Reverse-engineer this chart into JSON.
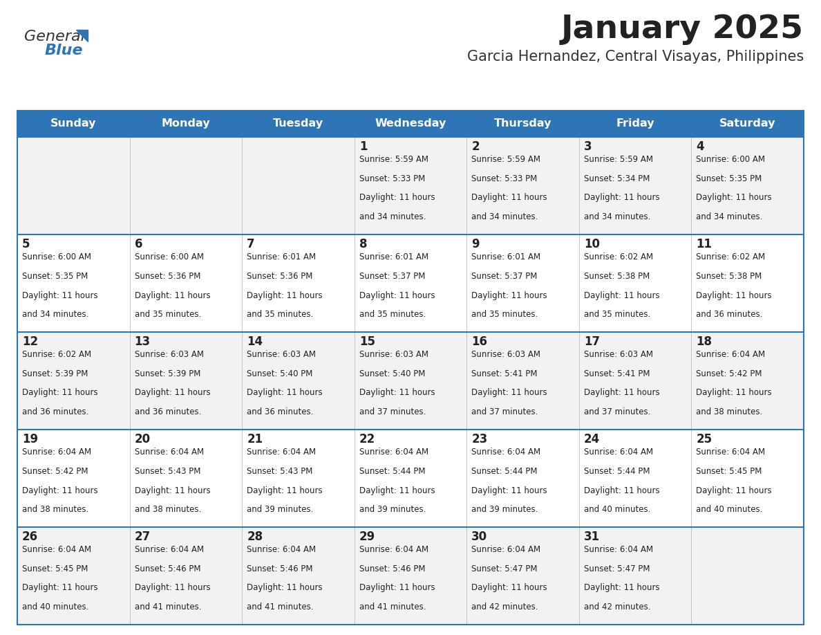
{
  "title": "January 2025",
  "subtitle": "Garcia Hernandez, Central Visayas, Philippines",
  "header_bg": "#2E75B6",
  "header_text_color": "#FFFFFF",
  "row_bg_odd": "#F2F2F2",
  "row_bg_even": "#FFFFFF",
  "day_headers": [
    "Sunday",
    "Monday",
    "Tuesday",
    "Wednesday",
    "Thursday",
    "Friday",
    "Saturday"
  ],
  "cell_line_color": "#2E75B6",
  "day_number_color": "#222222",
  "info_text_color": "#222222",
  "calendar_data": [
    [
      {
        "day": "",
        "sunrise": "",
        "sunset": "",
        "daylight_h": "",
        "daylight_m": ""
      },
      {
        "day": "",
        "sunrise": "",
        "sunset": "",
        "daylight_h": "",
        "daylight_m": ""
      },
      {
        "day": "",
        "sunrise": "",
        "sunset": "",
        "daylight_h": "",
        "daylight_m": ""
      },
      {
        "day": "1",
        "sunrise": "5:59 AM",
        "sunset": "5:33 PM",
        "daylight_h": "11",
        "daylight_m": "34"
      },
      {
        "day": "2",
        "sunrise": "5:59 AM",
        "sunset": "5:33 PM",
        "daylight_h": "11",
        "daylight_m": "34"
      },
      {
        "day": "3",
        "sunrise": "5:59 AM",
        "sunset": "5:34 PM",
        "daylight_h": "11",
        "daylight_m": "34"
      },
      {
        "day": "4",
        "sunrise": "6:00 AM",
        "sunset": "5:35 PM",
        "daylight_h": "11",
        "daylight_m": "34"
      }
    ],
    [
      {
        "day": "5",
        "sunrise": "6:00 AM",
        "sunset": "5:35 PM",
        "daylight_h": "11",
        "daylight_m": "34"
      },
      {
        "day": "6",
        "sunrise": "6:00 AM",
        "sunset": "5:36 PM",
        "daylight_h": "11",
        "daylight_m": "35"
      },
      {
        "day": "7",
        "sunrise": "6:01 AM",
        "sunset": "5:36 PM",
        "daylight_h": "11",
        "daylight_m": "35"
      },
      {
        "day": "8",
        "sunrise": "6:01 AM",
        "sunset": "5:37 PM",
        "daylight_h": "11",
        "daylight_m": "35"
      },
      {
        "day": "9",
        "sunrise": "6:01 AM",
        "sunset": "5:37 PM",
        "daylight_h": "11",
        "daylight_m": "35"
      },
      {
        "day": "10",
        "sunrise": "6:02 AM",
        "sunset": "5:38 PM",
        "daylight_h": "11",
        "daylight_m": "35"
      },
      {
        "day": "11",
        "sunrise": "6:02 AM",
        "sunset": "5:38 PM",
        "daylight_h": "11",
        "daylight_m": "36"
      }
    ],
    [
      {
        "day": "12",
        "sunrise": "6:02 AM",
        "sunset": "5:39 PM",
        "daylight_h": "11",
        "daylight_m": "36"
      },
      {
        "day": "13",
        "sunrise": "6:03 AM",
        "sunset": "5:39 PM",
        "daylight_h": "11",
        "daylight_m": "36"
      },
      {
        "day": "14",
        "sunrise": "6:03 AM",
        "sunset": "5:40 PM",
        "daylight_h": "11",
        "daylight_m": "36"
      },
      {
        "day": "15",
        "sunrise": "6:03 AM",
        "sunset": "5:40 PM",
        "daylight_h": "11",
        "daylight_m": "37"
      },
      {
        "day": "16",
        "sunrise": "6:03 AM",
        "sunset": "5:41 PM",
        "daylight_h": "11",
        "daylight_m": "37"
      },
      {
        "day": "17",
        "sunrise": "6:03 AM",
        "sunset": "5:41 PM",
        "daylight_h": "11",
        "daylight_m": "37"
      },
      {
        "day": "18",
        "sunrise": "6:04 AM",
        "sunset": "5:42 PM",
        "daylight_h": "11",
        "daylight_m": "38"
      }
    ],
    [
      {
        "day": "19",
        "sunrise": "6:04 AM",
        "sunset": "5:42 PM",
        "daylight_h": "11",
        "daylight_m": "38"
      },
      {
        "day": "20",
        "sunrise": "6:04 AM",
        "sunset": "5:43 PM",
        "daylight_h": "11",
        "daylight_m": "38"
      },
      {
        "day": "21",
        "sunrise": "6:04 AM",
        "sunset": "5:43 PM",
        "daylight_h": "11",
        "daylight_m": "39"
      },
      {
        "day": "22",
        "sunrise": "6:04 AM",
        "sunset": "5:44 PM",
        "daylight_h": "11",
        "daylight_m": "39"
      },
      {
        "day": "23",
        "sunrise": "6:04 AM",
        "sunset": "5:44 PM",
        "daylight_h": "11",
        "daylight_m": "39"
      },
      {
        "day": "24",
        "sunrise": "6:04 AM",
        "sunset": "5:44 PM",
        "daylight_h": "11",
        "daylight_m": "40"
      },
      {
        "day": "25",
        "sunrise": "6:04 AM",
        "sunset": "5:45 PM",
        "daylight_h": "11",
        "daylight_m": "40"
      }
    ],
    [
      {
        "day": "26",
        "sunrise": "6:04 AM",
        "sunset": "5:45 PM",
        "daylight_h": "11",
        "daylight_m": "40"
      },
      {
        "day": "27",
        "sunrise": "6:04 AM",
        "sunset": "5:46 PM",
        "daylight_h": "11",
        "daylight_m": "41"
      },
      {
        "day": "28",
        "sunrise": "6:04 AM",
        "sunset": "5:46 PM",
        "daylight_h": "11",
        "daylight_m": "41"
      },
      {
        "day": "29",
        "sunrise": "6:04 AM",
        "sunset": "5:46 PM",
        "daylight_h": "11",
        "daylight_m": "41"
      },
      {
        "day": "30",
        "sunrise": "6:04 AM",
        "sunset": "5:47 PM",
        "daylight_h": "11",
        "daylight_m": "42"
      },
      {
        "day": "31",
        "sunrise": "6:04 AM",
        "sunset": "5:47 PM",
        "daylight_h": "11",
        "daylight_m": "42"
      },
      {
        "day": "",
        "sunrise": "",
        "sunset": "",
        "daylight_h": "",
        "daylight_m": ""
      }
    ]
  ]
}
